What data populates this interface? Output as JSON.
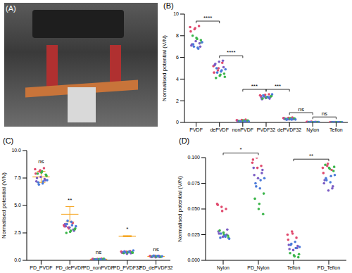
{
  "panel_A": {
    "title": "(A)"
  },
  "chart_data": [
    {
      "type": "scatter",
      "title": "(B)",
      "ylabel": "Normalised potential (V/N)",
      "categories": [
        "PVDF",
        "dePVDF",
        "nonPVDF",
        "PVDF32",
        "dePVDF32",
        "Nylon",
        "Teflon"
      ],
      "ylim": [
        0,
        10
      ],
      "yticks": [
        0,
        2,
        4,
        6,
        8,
        10
      ],
      "series": [
        {
          "color": "#e04a6e",
          "values": [
            [
              8.8,
              8.6,
              8.9,
              8.4,
              8.7
            ],
            [
              5.2,
              4.8,
              5.5,
              4.6,
              5.0
            ],
            [
              0.2,
              0.15,
              0.25,
              0.18,
              0.22
            ],
            [
              2.5,
              2.4,
              2.6,
              2.45,
              2.55
            ],
            [
              0.4,
              0.35,
              0.45,
              0.38,
              0.42
            ],
            [
              0.05,
              0.055,
              0.045,
              0.052,
              0.048
            ],
            [
              0.015,
              0.02,
              0.018,
              0.012,
              0.022
            ]
          ]
        },
        {
          "color": "#7b5cc4",
          "values": [
            [
              7.3,
              7.1,
              7.5,
              7.0,
              7.2
            ],
            [
              5.7,
              5.3,
              5.6,
              5.1,
              5.4
            ],
            [
              0.1,
              0.12,
              0.08,
              0.14,
              0.11
            ],
            [
              2.2,
              2.3,
              2.25,
              2.35,
              2.15
            ],
            [
              0.3,
              0.33,
              0.28,
              0.36,
              0.31
            ],
            [
              0.03,
              0.025,
              0.028,
              0.032,
              0.027
            ],
            [
              0.01,
              0.012,
              0.009,
              0.011,
              0.013
            ]
          ]
        },
        {
          "color": "#3bb54a",
          "values": [
            [
              7.8,
              7.6,
              8.0,
              7.7,
              7.4
            ],
            [
              4.3,
              4.5,
              4.1,
              4.4,
              4.2
            ],
            [
              0.15,
              0.17,
              0.13,
              0.19,
              0.16
            ],
            [
              2.3,
              2.4,
              2.2,
              2.35,
              2.45
            ],
            [
              0.35,
              0.37,
              0.32,
              0.39,
              0.34
            ],
            [
              0.02,
              0.022,
              0.024,
              0.021,
              0.023
            ],
            [
              0.005,
              0.008,
              0.006,
              0.007,
              0.004
            ]
          ]
        },
        {
          "color": "#4a7ad9",
          "values": [
            [
              7.2,
              6.9,
              7.4,
              7.0,
              6.8
            ],
            [
              5.0,
              4.7,
              4.9,
              4.6,
              4.8
            ],
            [
              0.06,
              0.09,
              0.07,
              0.1,
              0.08
            ],
            [
              2.5,
              2.35,
              2.6,
              2.4,
              2.3
            ],
            [
              0.25,
              0.29,
              0.27,
              0.3,
              0.26
            ],
            [
              0.026,
              0.03,
              0.024,
              0.028,
              0.025
            ],
            [
              0.014,
              0.016,
              0.012,
              0.015,
              0.013
            ]
          ]
        }
      ],
      "brackets": [
        {
          "from": 0,
          "to": 1,
          "label": "****"
        },
        {
          "from": 1,
          "to": 2,
          "label": "****"
        },
        {
          "from": 2,
          "to": 3,
          "label": "***"
        },
        {
          "from": 3,
          "to": 4,
          "label": "***"
        },
        {
          "from": 4,
          "to": 5,
          "label": "ns"
        },
        {
          "from": 5,
          "to": 6,
          "label": "ns"
        }
      ]
    },
    {
      "type": "scatter",
      "title": "(C)",
      "ylabel": "Normalised potential (V/N)",
      "categories": [
        "PD_PVDF",
        "PD_dePVDF",
        "PD_nonPVDF",
        "PD_PVDF32",
        "PD_dePVDF32"
      ],
      "ylim": [
        0,
        10
      ],
      "yticks": [
        {
          "value": 0,
          "label": "0.0"
        },
        2.5,
        {
          "value": 5,
          "label": "5.0"
        },
        7.5,
        {
          "value": 10,
          "label": "10.0"
        }
      ],
      "series": [
        {
          "color": "#e04a6e",
          "values": [
            [
              8.3,
              8.1,
              8.4,
              7.9,
              8.2
            ],
            [
              3.2,
              3.0,
              3.4,
              3.1,
              2.9
            ],
            [
              0.12,
              0.1,
              0.15,
              0.11,
              0.13
            ],
            [
              0.8,
              0.75,
              0.85,
              0.7,
              0.78
            ],
            [
              0.4,
              0.38,
              0.42,
              0.36,
              0.41
            ]
          ]
        },
        {
          "color": "#7b5cc4",
          "values": [
            [
              7.4,
              7.2,
              7.6,
              7.3,
              7.5
            ],
            [
              2.8,
              3.3,
              3.0,
              2.7,
              3.1
            ],
            [
              0.08,
              0.09,
              0.07,
              0.1,
              0.06
            ],
            [
              0.65,
              0.7,
              0.6,
              0.68,
              0.72
            ],
            [
              0.3,
              0.32,
              0.28,
              0.34,
              0.31
            ]
          ]
        },
        {
          "color": "#3bb54a",
          "values": [
            [
              8.0,
              7.8,
              7.9,
              8.1,
              7.7
            ],
            [
              2.6,
              2.8,
              2.5,
              2.7,
              2.9
            ],
            [
              0.1,
              0.12,
              0.09,
              0.11,
              0.14
            ],
            [
              0.7,
              0.74,
              0.66,
              0.76,
              0.69
            ],
            [
              0.35,
              0.33,
              0.37,
              0.36,
              0.34
            ]
          ]
        },
        {
          "color": "#4a7ad9",
          "values": [
            [
              7.1,
              7.0,
              7.3,
              6.9,
              7.2
            ],
            [
              3.3,
              3.5,
              3.1,
              3.6,
              3.2
            ],
            [
              0.05,
              0.07,
              0.06,
              0.08,
              0.04
            ],
            [
              0.82,
              0.77,
              0.9,
              0.73,
              0.8
            ],
            [
              0.38,
              0.4,
              0.37,
              0.43,
              0.39
            ]
          ]
        }
      ],
      "error_bars": {
        "color": "#f5a623",
        "mean": [
          7.6,
          4.2,
          0.1,
          2.2,
          0.35
        ],
        "error": [
          0.5,
          0.7,
          0.05,
          0.05,
          0.05
        ]
      },
      "group_labels": [
        "ns",
        "**",
        "ns",
        "*",
        "ns"
      ]
    },
    {
      "type": "scatter",
      "title": "(D)",
      "ylabel": "Normalised potential (V/N)",
      "categories": [
        "Nylon",
        "PD_Nylon",
        "Teflon",
        "PD_Teflon"
      ],
      "ylim": [
        0,
        0.1
      ],
      "yticks": [
        {
          "value": 0,
          "label": "0.000"
        },
        0.025,
        {
          "value": 0.05,
          "label": "0.050"
        },
        0.075,
        {
          "value": 0.1,
          "label": "0.100"
        }
      ],
      "series": [
        {
          "color": "#e04a6e",
          "values": [
            [
              0.055,
              0.052,
              0.05,
              0.054,
              0.048
            ],
            [
              0.095,
              0.1,
              0.092,
              0.098,
              0.09
            ],
            [
              0.025,
              0.028,
              0.022,
              0.02,
              0.026
            ],
            [
              0.09,
              0.092,
              0.088,
              0.085,
              0.094
            ]
          ]
        },
        {
          "color": "#7b5cc4",
          "values": [
            [
              0.025,
              0.028,
              0.023,
              0.03,
              0.026
            ],
            [
              0.085,
              0.09,
              0.08,
              0.088,
              0.083
            ],
            [
              0.012,
              0.015,
              0.01,
              0.014,
              0.011
            ],
            [
              0.07,
              0.075,
              0.068,
              0.072,
              0.078
            ]
          ]
        },
        {
          "color": "#3bb54a",
          "values": [
            [
              0.027,
              0.024,
              0.029,
              0.025,
              0.022
            ],
            [
              0.05,
              0.045,
              0.06,
              0.055,
              0.065
            ],
            [
              0.005,
              0.003,
              0.007,
              0.004,
              0.006
            ],
            [
              0.09,
              0.087,
              0.093,
              0.089,
              0.091
            ]
          ]
        },
        {
          "color": "#4a7ad9",
          "values": [
            [
              0.022,
              0.024,
              0.021,
              0.026,
              0.023
            ],
            [
              0.075,
              0.07,
              0.08,
              0.072,
              0.078
            ],
            [
              0.015,
              0.018,
              0.013,
              0.016,
              0.012
            ],
            [
              0.08,
              0.076,
              0.083,
              0.078,
              0.082
            ]
          ]
        }
      ],
      "brackets": [
        {
          "from": 0,
          "to": 1,
          "label": "*"
        },
        {
          "from": 2,
          "to": 3,
          "label": "**"
        }
      ]
    }
  ]
}
